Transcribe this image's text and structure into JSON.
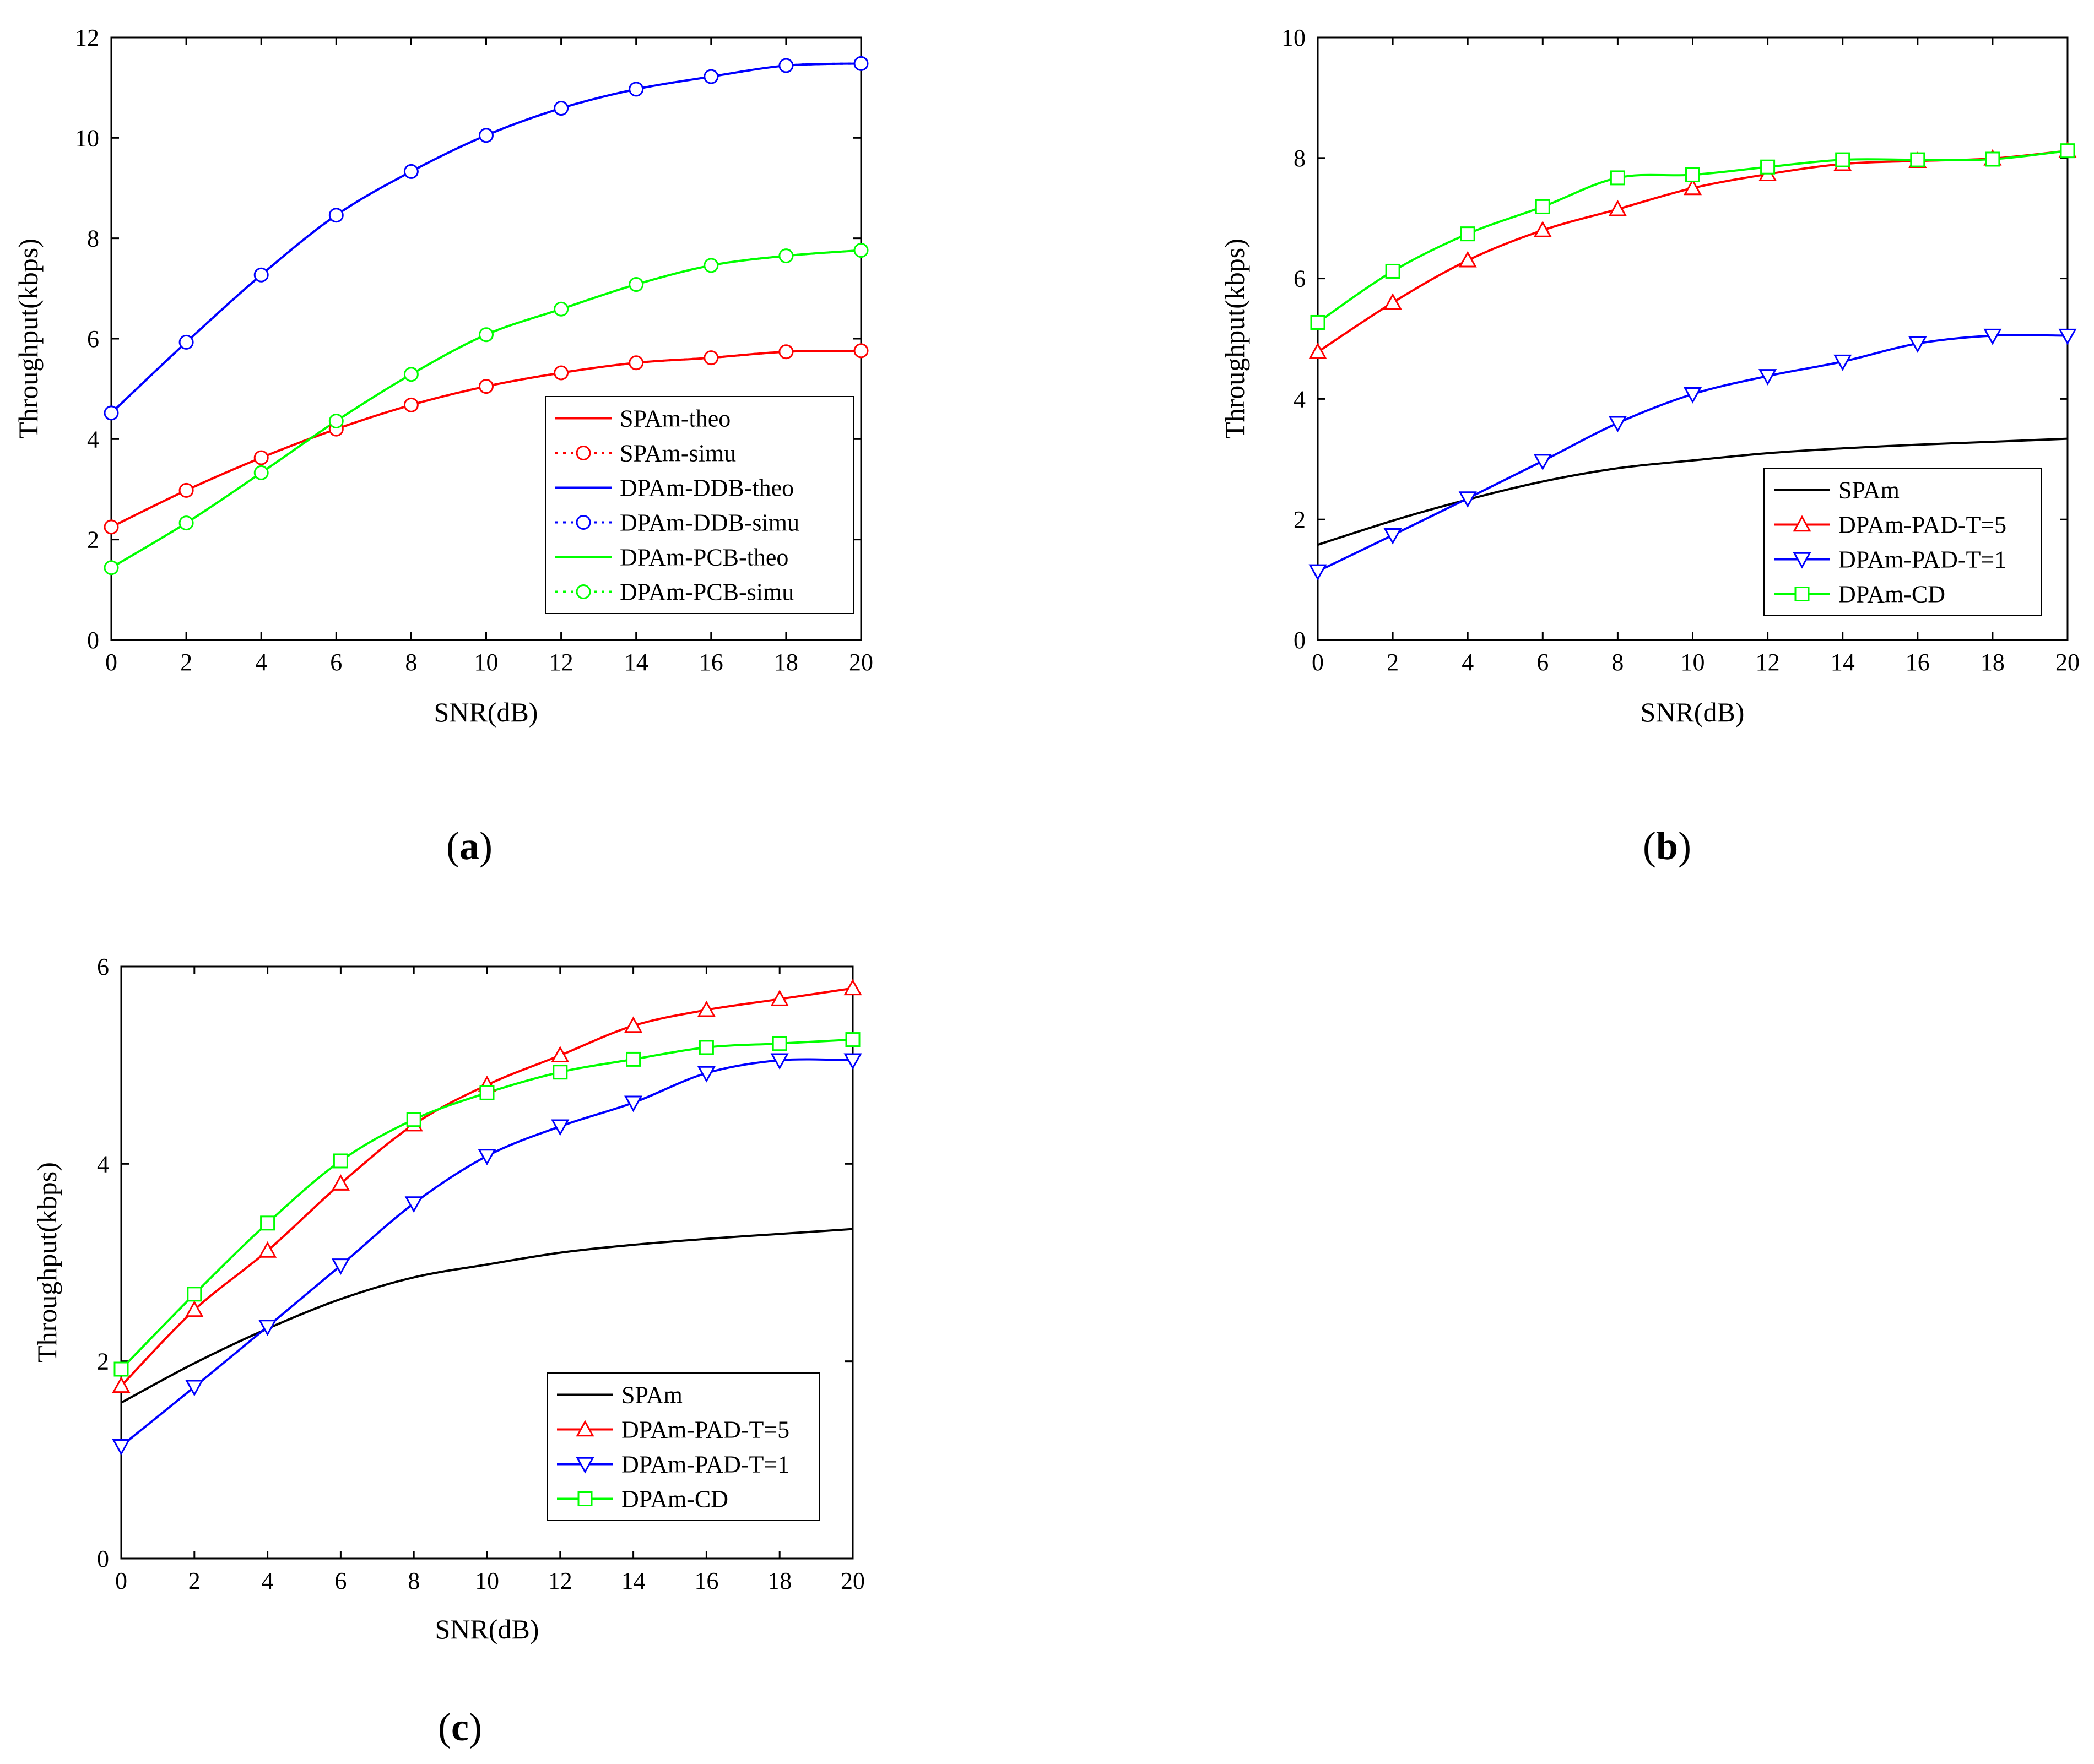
{
  "figure": {
    "panels": [
      "a",
      "b",
      "c"
    ]
  },
  "chart_data": [
    {
      "id": "a",
      "panel_label": "a",
      "type": "line",
      "xlabel": "SNR(dB)",
      "ylabel": "Throughput(kbps)",
      "xlim": [
        0,
        20
      ],
      "ylim": [
        0,
        12
      ],
      "xticks": [
        0,
        2,
        4,
        6,
        8,
        10,
        12,
        14,
        16,
        18,
        20
      ],
      "yticks": [
        0,
        2,
        4,
        6,
        8,
        10,
        12
      ],
      "legend_position": "bottom-right",
      "x": [
        0,
        2,
        4,
        6,
        8,
        10,
        12,
        14,
        16,
        18,
        20
      ],
      "series": [
        {
          "name": "SPAm-theo",
          "color": "#ff0000",
          "style": "solid",
          "marker": "none",
          "values": [
            2.25,
            2.98,
            3.63,
            4.2,
            4.68,
            5.05,
            5.32,
            5.52,
            5.62,
            5.74,
            5.76
          ]
        },
        {
          "name": "SPAm-simu",
          "color": "#ff0000",
          "style": "dotted",
          "marker": "circle",
          "values": [
            2.25,
            2.98,
            3.63,
            4.2,
            4.68,
            5.05,
            5.32,
            5.52,
            5.62,
            5.74,
            5.76
          ]
        },
        {
          "name": "DPAm-DDB-theo",
          "color": "#0000ff",
          "style": "solid",
          "marker": "none",
          "values": [
            4.52,
            5.93,
            7.27,
            8.46,
            9.33,
            10.05,
            10.59,
            10.97,
            11.22,
            11.44,
            11.48
          ]
        },
        {
          "name": "DPAm-DDB-simu",
          "color": "#0000ff",
          "style": "dotted",
          "marker": "circle",
          "values": [
            4.52,
            5.93,
            7.27,
            8.46,
            9.33,
            10.05,
            10.59,
            10.97,
            11.22,
            11.44,
            11.48
          ]
        },
        {
          "name": "DPAm-PCB-theo",
          "color": "#00ff00",
          "style": "solid",
          "marker": "none",
          "values": [
            1.44,
            2.33,
            3.33,
            4.36,
            5.29,
            6.08,
            6.59,
            7.08,
            7.46,
            7.65,
            7.76
          ]
        },
        {
          "name": "DPAm-PCB-simu",
          "color": "#00ff00",
          "style": "dotted",
          "marker": "circle",
          "values": [
            1.44,
            2.33,
            3.33,
            4.36,
            5.29,
            6.08,
            6.59,
            7.08,
            7.46,
            7.65,
            7.76
          ]
        }
      ]
    },
    {
      "id": "b",
      "panel_label": "b",
      "type": "line",
      "xlabel": "SNR(dB)",
      "ylabel": "Throughput(kbps)",
      "xlim": [
        0,
        20
      ],
      "ylim": [
        0,
        10
      ],
      "xticks": [
        0,
        2,
        4,
        6,
        8,
        10,
        12,
        14,
        16,
        18,
        20
      ],
      "yticks": [
        0,
        2,
        4,
        6,
        8,
        10
      ],
      "legend_position": "bottom-right",
      "x": [
        0,
        2,
        4,
        6,
        8,
        10,
        12,
        14,
        16,
        18,
        20
      ],
      "series": [
        {
          "name": "SPAm",
          "color": "#000000",
          "style": "solid",
          "marker": "none",
          "values": [
            1.58,
            1.98,
            2.33,
            2.63,
            2.85,
            2.98,
            3.1,
            3.18,
            3.24,
            3.29,
            3.34
          ]
        },
        {
          "name": "DPAm-PAD-T=5",
          "color": "#ff0000",
          "style": "solid",
          "marker": "triangle-up",
          "values": [
            4.78,
            5.6,
            6.3,
            6.8,
            7.15,
            7.5,
            7.73,
            7.9,
            7.95,
            7.99,
            8.12
          ]
        },
        {
          "name": "DPAm-PAD-T=1",
          "color": "#0000ff",
          "style": "solid",
          "marker": "triangle-down",
          "values": [
            1.14,
            1.74,
            2.35,
            2.97,
            3.6,
            4.08,
            4.38,
            4.62,
            4.92,
            5.05,
            5.05
          ]
        },
        {
          "name": "DPAm-CD",
          "color": "#00ff00",
          "style": "solid",
          "marker": "square",
          "values": [
            5.27,
            6.12,
            6.74,
            7.19,
            7.67,
            7.72,
            7.85,
            7.97,
            7.97,
            7.98,
            8.12
          ]
        }
      ]
    },
    {
      "id": "c",
      "panel_label": "c",
      "type": "line",
      "xlabel": "SNR(dB)",
      "ylabel": "Throughput(kbps)",
      "xlim": [
        0,
        20
      ],
      "ylim": [
        0,
        6
      ],
      "xticks": [
        0,
        2,
        4,
        6,
        8,
        10,
        12,
        14,
        16,
        18,
        20
      ],
      "yticks": [
        0,
        2,
        4,
        6
      ],
      "legend_position": "bottom-right",
      "x": [
        0,
        2,
        4,
        6,
        8,
        10,
        12,
        14,
        16,
        18,
        20
      ],
      "series": [
        {
          "name": "SPAm",
          "color": "#000000",
          "style": "solid",
          "marker": "none",
          "values": [
            1.58,
            1.98,
            2.33,
            2.63,
            2.85,
            2.98,
            3.1,
            3.18,
            3.24,
            3.29,
            3.34
          ]
        },
        {
          "name": "DPAm-PAD-T=5",
          "color": "#ff0000",
          "style": "solid",
          "marker": "triangle-up",
          "values": [
            1.75,
            2.52,
            3.12,
            3.8,
            4.4,
            4.8,
            5.1,
            5.4,
            5.56,
            5.67,
            5.78
          ]
        },
        {
          "name": "DPAm-PAD-T=1",
          "color": "#0000ff",
          "style": "solid",
          "marker": "triangle-down",
          "values": [
            1.14,
            1.74,
            2.35,
            2.97,
            3.6,
            4.08,
            4.38,
            4.62,
            4.92,
            5.05,
            5.05
          ]
        },
        {
          "name": "DPAm-CD",
          "color": "#00ff00",
          "style": "solid",
          "marker": "square",
          "values": [
            1.92,
            2.68,
            3.4,
            4.03,
            4.45,
            4.72,
            4.93,
            5.06,
            5.18,
            5.22,
            5.26
          ]
        }
      ]
    }
  ]
}
